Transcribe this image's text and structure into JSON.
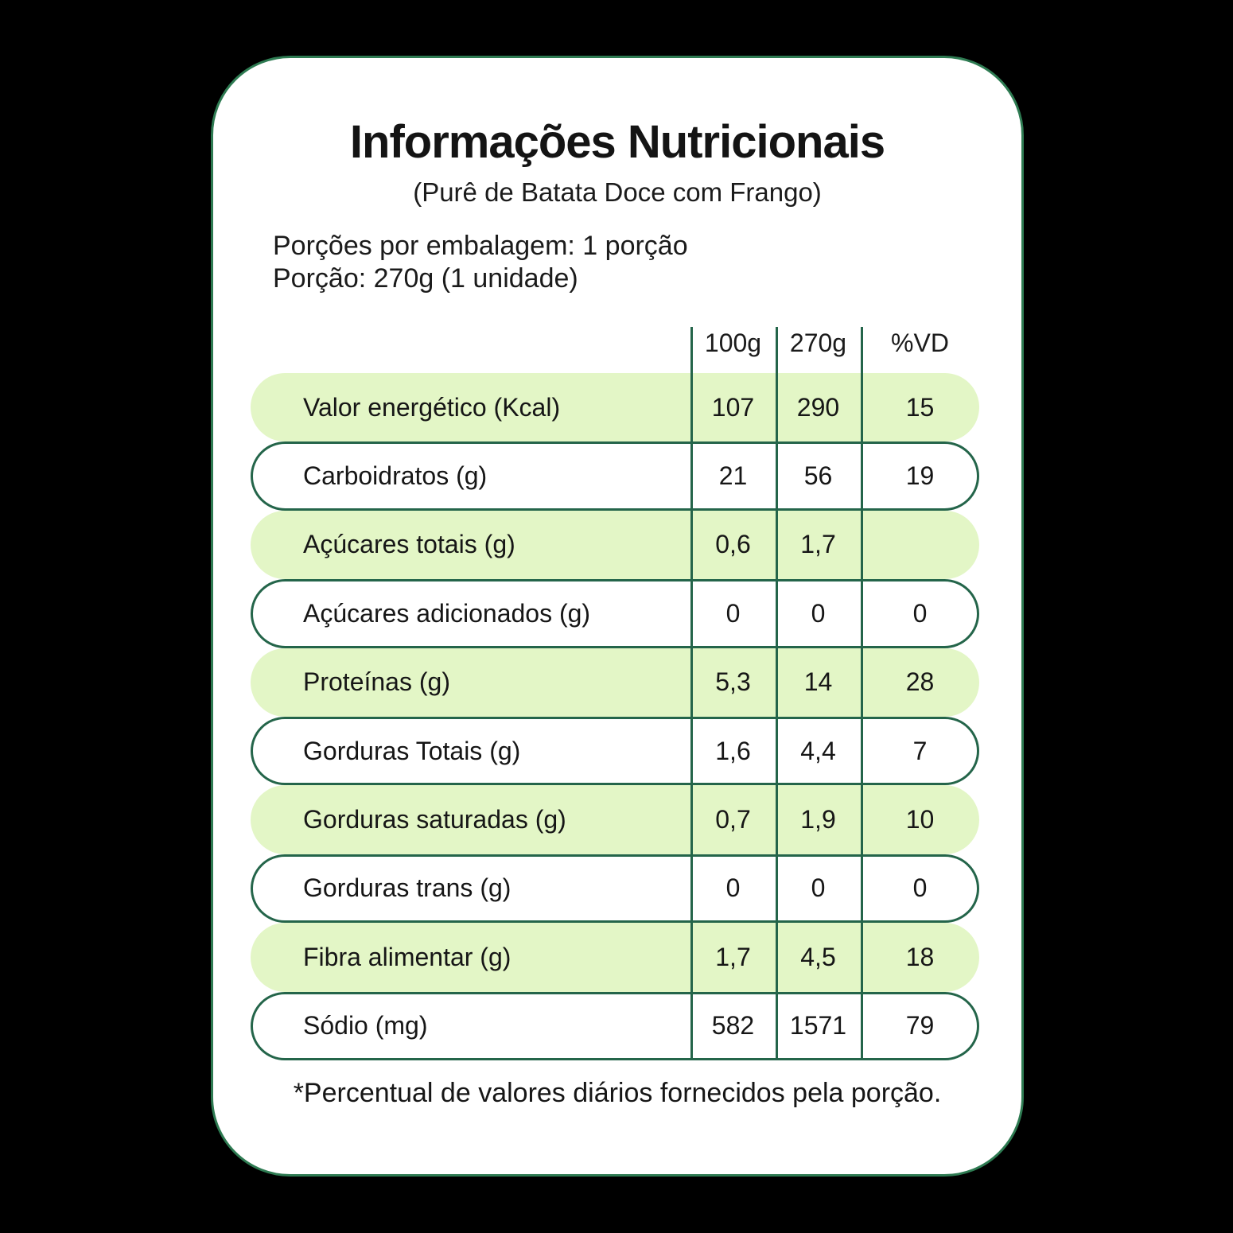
{
  "header": {
    "title": "Informações Nutricionais",
    "subtitle": "(Purê de Batata Doce com Frango)"
  },
  "serving": {
    "per_package": "Porções por embalagem: 1 porção",
    "size": "Porção: 270g (1 unidade)"
  },
  "table": {
    "columns": [
      "100g",
      "270g",
      "%VD"
    ],
    "rows": [
      {
        "label": "Valor energético (Kcal)",
        "values": [
          "107",
          "290",
          "15"
        ]
      },
      {
        "label": "Carboidratos (g)",
        "values": [
          "21",
          "56",
          "19"
        ]
      },
      {
        "label": "Açúcares totais (g)",
        "values": [
          "0,6",
          "1,7",
          ""
        ]
      },
      {
        "label": "Açúcares adicionados (g)",
        "values": [
          "0",
          "0",
          "0"
        ]
      },
      {
        "label": "Proteínas (g)",
        "values": [
          "5,3",
          "14",
          "28"
        ]
      },
      {
        "label": "Gorduras Totais (g)",
        "values": [
          "1,6",
          "4,4",
          "7"
        ]
      },
      {
        "label": "Gorduras saturadas (g)",
        "values": [
          "0,7",
          "1,9",
          "10"
        ]
      },
      {
        "label": "Gorduras trans (g)",
        "values": [
          "0",
          "0",
          "0"
        ]
      },
      {
        "label": "Fibra alimentar (g)",
        "values": [
          "1,7",
          "4,5",
          "18"
        ]
      },
      {
        "label": "Sódio (mg)",
        "values": [
          "582",
          "1571",
          "79"
        ]
      }
    ]
  },
  "footnote": "*Percentual de valores diários fornecidos pela porção.",
  "colors": {
    "row_fill_green": "#e3f6c6",
    "line_green": "#24654a",
    "card_border_green": "#2e7b52",
    "text": "#161616",
    "background": "#000000"
  }
}
